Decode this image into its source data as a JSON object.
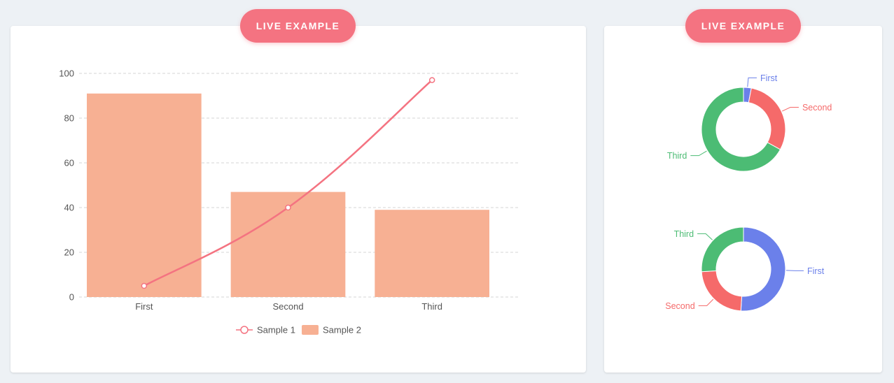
{
  "badges": {
    "left": "LIVE EXAMPLE",
    "right": "LIVE EXAMPLE"
  },
  "chart_data": [
    {
      "type": "bar",
      "categories": [
        "First",
        "Second",
        "Third"
      ],
      "ylim": [
        0,
        100
      ],
      "yticks": [
        0,
        20,
        40,
        60,
        80,
        100
      ],
      "grid": true,
      "legend_placement": "bottom",
      "series": [
        {
          "name": "Sample 1",
          "kind": "line",
          "color": "#f47381",
          "values": [
            5,
            40,
            97
          ]
        },
        {
          "name": "Sample 2",
          "kind": "bar",
          "color": "#f7b093",
          "values": [
            91,
            47,
            39
          ]
        }
      ]
    },
    {
      "type": "pie",
      "donut": true,
      "labels": [
        "First",
        "Second",
        "Third"
      ],
      "values": [
        3,
        30,
        67
      ],
      "colors": [
        "#6b80ea",
        "#f56a6a",
        "#4cbc74"
      ]
    },
    {
      "type": "pie",
      "donut": true,
      "labels": [
        "First",
        "Second",
        "Third"
      ],
      "values": [
        51,
        23,
        26
      ],
      "colors": [
        "#6b80ea",
        "#f56a6a",
        "#4cbc74"
      ]
    }
  ]
}
